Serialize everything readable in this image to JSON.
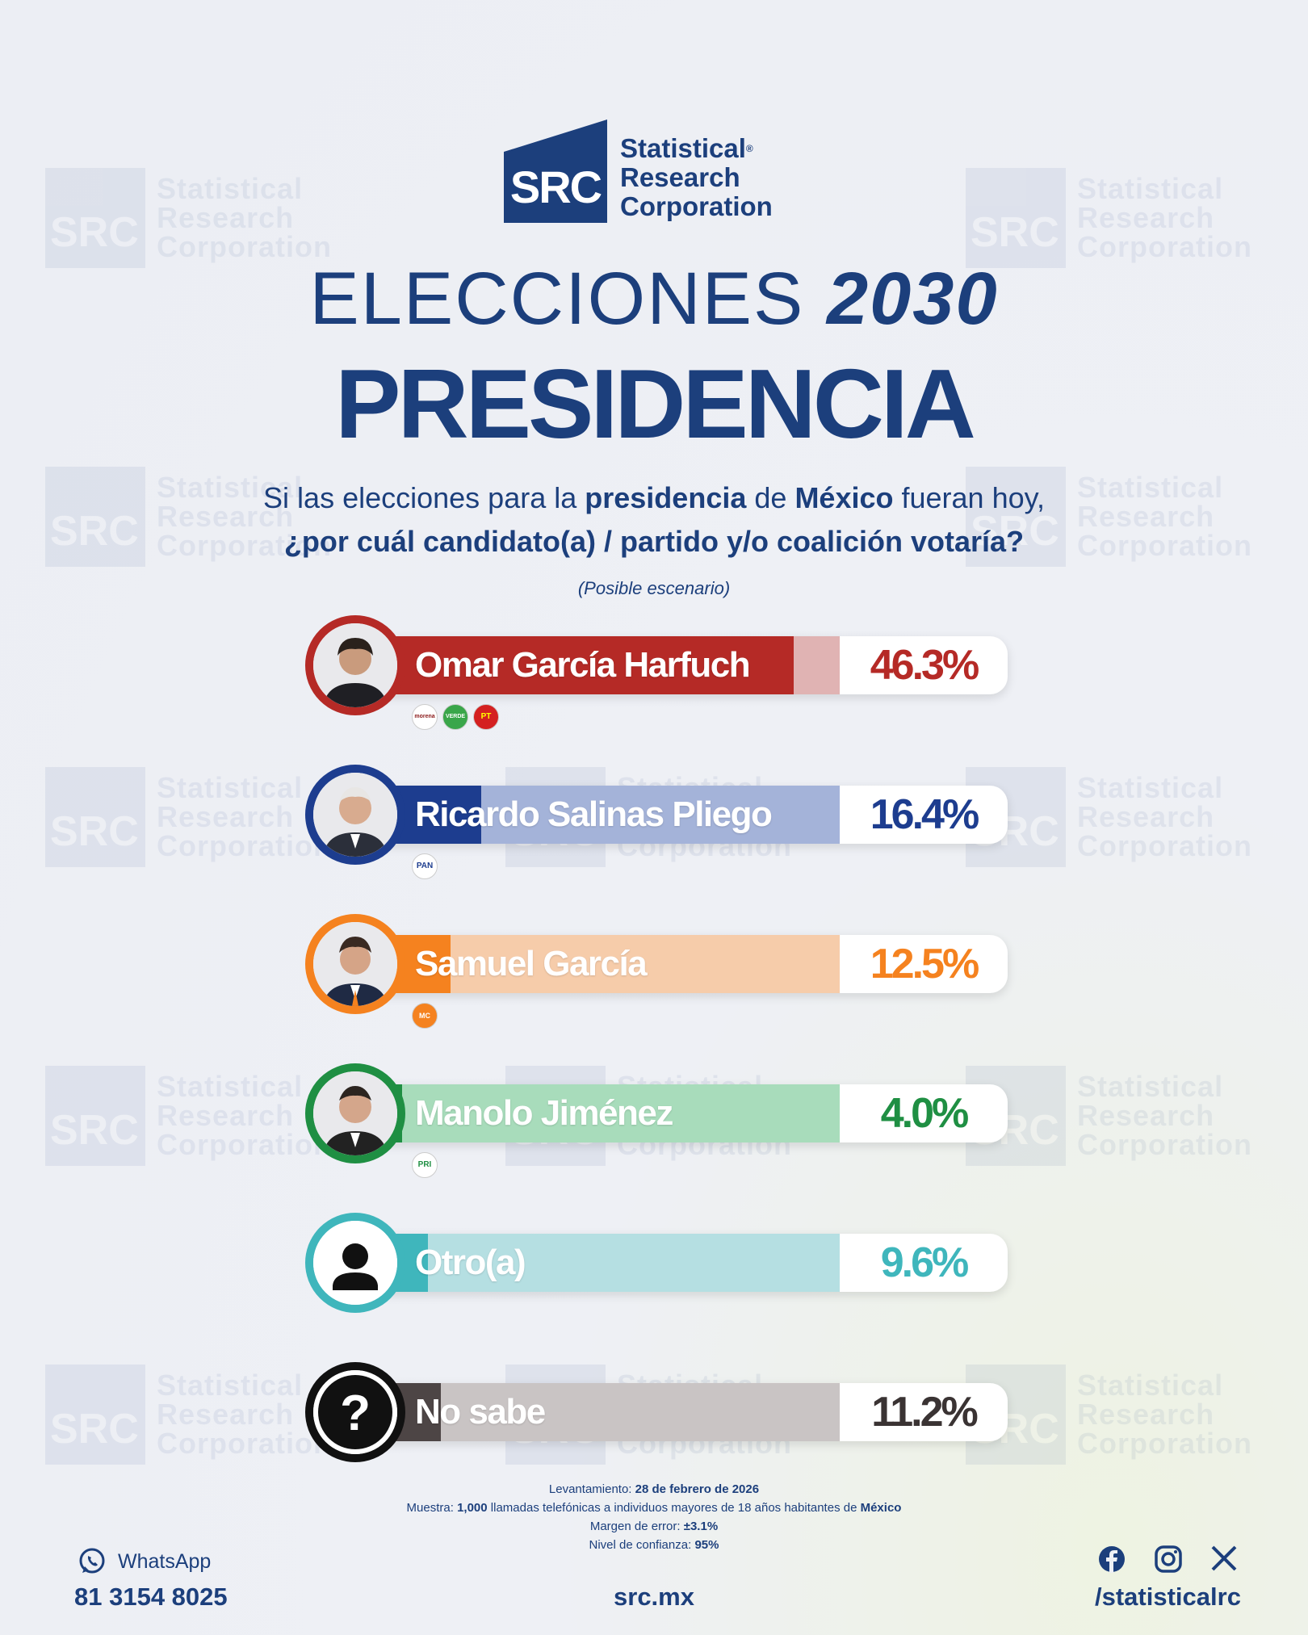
{
  "brand": {
    "line1": "Statistical",
    "line2": "Research",
    "line3": "Corporation",
    "mark": "SRC",
    "reg": "®"
  },
  "watermark": {
    "mark": "SRC",
    "line1": "Statistical",
    "line2": "Research",
    "line3": "Corporation"
  },
  "header": {
    "title_prefix": "ELECCIONES",
    "title_year": "2030",
    "subtitle": "PRESIDENCIA",
    "question_a": "Si las elecciones para la",
    "question_b": "presidencia",
    "question_c": "de",
    "question_d": "México",
    "question_e": "fueran hoy,",
    "question_line2": "¿por cuál candidato(a) / partido y/o coalición votaría?",
    "scenario": "(Posible escenario)"
  },
  "chart_data": {
    "type": "bar",
    "title": "PRESIDENCIA",
    "unit": "%",
    "categories": [
      "Omar García Harfuch",
      "Ricardo Salinas Pliego",
      "Samuel García",
      "Manolo Jiménez",
      "Otro(a)",
      "No sabe"
    ],
    "values": [
      46.3,
      16.4,
      12.5,
      4.0,
      9.6,
      11.2
    ],
    "labels": [
      "46.3%",
      "16.4%",
      "12.5%",
      "4.0%",
      "9.6%",
      "11.2%"
    ],
    "colors": [
      "#b52a26",
      "#1d3d8f",
      "#f5821f",
      "#1f8f43",
      "#3fb6bc",
      "#4d4545"
    ],
    "track_colors": [
      "#e0b3b3",
      "#a4b3d9",
      "#f6ccaa",
      "#a8dcbb",
      "#b5dfe2",
      "#c9c4c4"
    ],
    "pct_colors": [
      "#b52a26",
      "#1d3d8f",
      "#f5821f",
      "#1f8f43",
      "#3fb6bc",
      "#3a3333"
    ],
    "parties": [
      [
        "morena",
        "VERDE",
        "PT"
      ],
      [
        "PAN"
      ],
      [
        "MC"
      ],
      [
        "PRI"
      ],
      [],
      []
    ],
    "xlim": [
      0,
      100
    ]
  },
  "footer": {
    "fecha_label": "Levantamiento:",
    "fecha": "28 de febrero de 2026",
    "muestra_label": "Muestra:",
    "muestra_n": "1,000",
    "muestra_txt": "llamadas telefónicas a individuos mayores de 18 años habitantes de",
    "muestra_pais": "México",
    "margen_label": "Margen de error:",
    "margen": "±3.1%",
    "nivel_label": "Nivel de confianza:",
    "nivel": "95%"
  },
  "contact": {
    "whatsapp_label": "WhatsApp",
    "phone": "81 3154 8025",
    "site": "src.mx",
    "handle": "/statisticalrc"
  },
  "colors": {
    "brand": "#1c3f7c"
  }
}
